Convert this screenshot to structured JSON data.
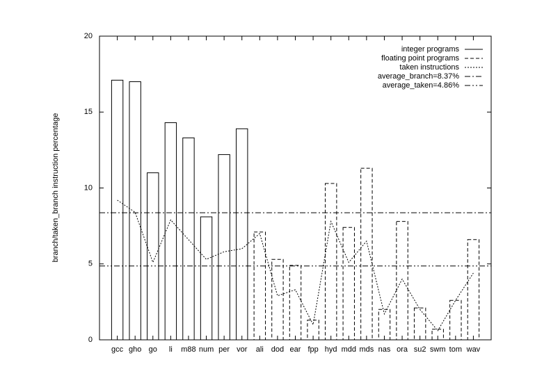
{
  "chart_data": {
    "type": "bar",
    "y_label": "branch/taken_branch instruction percentage",
    "categories": [
      "gcc",
      "gho",
      "go",
      "li",
      "m88",
      "num",
      "per",
      "vor",
      "ali",
      "dod",
      "ear",
      "fpp",
      "hyd",
      "mdd",
      "mds",
      "nas",
      "ora",
      "su2",
      "swm",
      "tom",
      "wav"
    ],
    "ylim": [
      0,
      20
    ],
    "yticks": [
      0,
      5,
      10,
      15,
      20
    ],
    "legend": "top-right",
    "series": [
      {
        "name": "integer programs",
        "type": "bar",
        "color": "#000000",
        "dash": "none",
        "values": [
          17.1,
          17.0,
          11.0,
          14.3,
          13.3,
          8.1,
          12.2,
          13.9,
          null,
          null,
          null,
          null,
          null,
          null,
          null,
          null,
          null,
          null,
          null,
          null,
          null
        ]
      },
      {
        "name": "floating point programs",
        "type": "bar",
        "color": "#000000",
        "dash": "5,3",
        "values": [
          null,
          null,
          null,
          null,
          null,
          null,
          null,
          null,
          7.1,
          5.3,
          4.9,
          1.3,
          10.3,
          7.4,
          11.3,
          2.0,
          7.8,
          2.1,
          0.7,
          2.6,
          6.6
        ]
      },
      {
        "name": "taken instructions",
        "type": "line",
        "color": "#000000",
        "dash": "2,2",
        "values": [
          9.2,
          8.4,
          5.1,
          7.9,
          6.6,
          5.3,
          5.8,
          6.0,
          7.0,
          2.9,
          3.3,
          1.0,
          7.8,
          5.1,
          6.5,
          1.7,
          4.0,
          2.0,
          0.6,
          2.6,
          4.4
        ]
      },
      {
        "name": "average_branch=8.37%",
        "type": "hline",
        "color": "#000000",
        "dash": "8,3,2,3",
        "value": 8.37
      },
      {
        "name": "average_taken=4.86%",
        "type": "hline",
        "color": "#000000",
        "dash": "8,3,2,3,2,3",
        "value": 4.86
      }
    ]
  }
}
